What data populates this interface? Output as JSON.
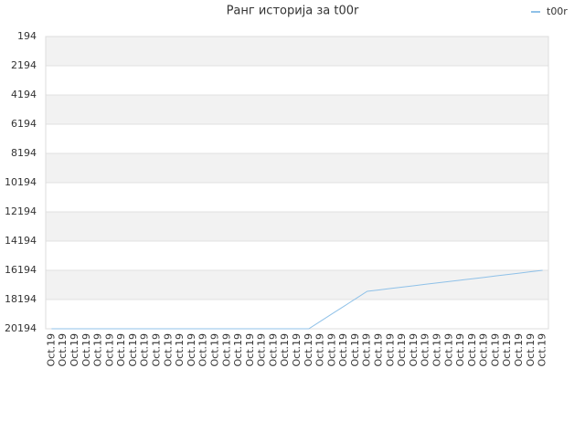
{
  "chart_data": {
    "type": "line",
    "title": "Ранг историја за t00r",
    "categories": [
      "Oct.19",
      "Oct.19",
      "Oct.19",
      "Oct.19",
      "Oct.19",
      "Oct.19",
      "Oct.19",
      "Oct.19",
      "Oct.19",
      "Oct.19",
      "Oct.19",
      "Oct.19",
      "Oct.19",
      "Oct.19",
      "Oct.19",
      "Oct.19",
      "Oct.19",
      "Oct.19",
      "Oct.19",
      "Oct.19",
      "Oct.19",
      "Oct.19",
      "Oct.19",
      "Oct.19",
      "Oct.19",
      "Oct.19",
      "Oct.19",
      "Oct.19",
      "Oct.19",
      "Oct.19",
      "Oct.19",
      "Oct.19",
      "Oct.19",
      "Oct.19",
      "Oct.19",
      "Oct.19",
      "Oct.19",
      "Oct.19",
      "Oct.19",
      "Oct.19",
      "Oct.19",
      "Oct.19",
      "Oct.19"
    ],
    "series": [
      {
        "name": "t00r",
        "color": "#8fc1e8",
        "values": [
          20194,
          20194,
          20194,
          20194,
          20194,
          20194,
          20194,
          20194,
          20194,
          20194,
          20194,
          20194,
          20194,
          20194,
          20194,
          20194,
          20194,
          20194,
          20194,
          20194,
          20194,
          20194,
          20194,
          19681,
          19169,
          18656,
          18144,
          17631,
          17535,
          17439,
          17344,
          17248,
          17152,
          17056,
          16961,
          16865,
          16769,
          16673,
          16577,
          16482,
          16386,
          16290,
          16194
        ]
      }
    ],
    "ylim": [
      20194,
      194
    ],
    "yticks": [
      194,
      2194,
      4194,
      6194,
      8194,
      10194,
      12194,
      14194,
      16194,
      18194,
      20194
    ],
    "grid": true,
    "legend": "top-right"
  }
}
